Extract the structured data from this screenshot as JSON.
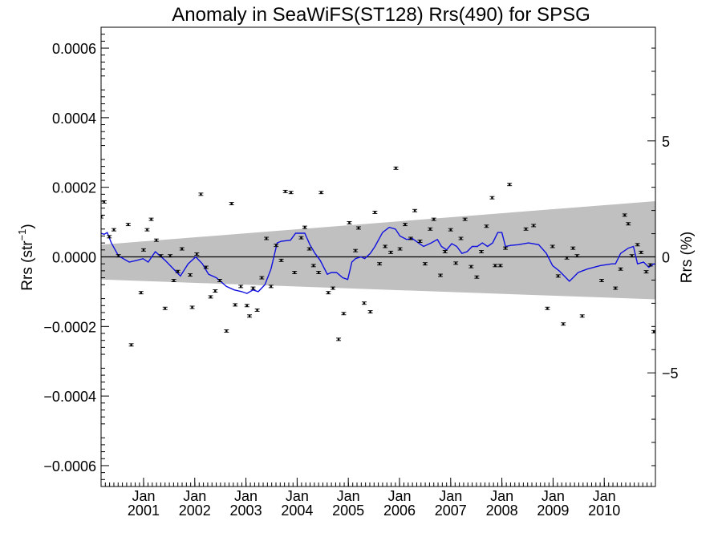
{
  "chart_data": {
    "type": "scatter",
    "title": "Anomaly in SeaWiFS(ST128) Rrs(490) for SPSG",
    "ylabel_left": "Rrs (str",
    "ylabel_left_sup": "−1",
    "ylabel_left_close": ")",
    "ylabel_right": "Rrs (%)",
    "xlim": [
      2000.0,
      2010.83
    ],
    "ylim_left": [
      -0.00066,
      0.00066
    ],
    "ylim_right": [
      -9.9,
      9.9
    ],
    "yticks_left": [
      {
        "v": 0.0006,
        "label": "0.0006"
      },
      {
        "v": 0.0004,
        "label": "0.0004"
      },
      {
        "v": 0.0002,
        "label": "0.0002"
      },
      {
        "v": 0.0,
        "label": "0.0000"
      },
      {
        "v": -0.0002,
        "label": "−0.0002"
      },
      {
        "v": -0.0004,
        "label": "−0.0004"
      },
      {
        "v": -0.0006,
        "label": "−0.0006"
      }
    ],
    "yticks_right": [
      {
        "v": 5,
        "label": "5"
      },
      {
        "v": 0,
        "label": "0"
      },
      {
        "v": -5,
        "label": "−5"
      }
    ],
    "xticks": [
      {
        "x": 2000.83,
        "month": "Jan",
        "year": "2001"
      },
      {
        "x": 2001.83,
        "month": "Jan",
        "year": "2002"
      },
      {
        "x": 2002.83,
        "month": "Jan",
        "year": "2003"
      },
      {
        "x": 2003.83,
        "month": "Jan",
        "year": "2004"
      },
      {
        "x": 2004.83,
        "month": "Jan",
        "year": "2005"
      },
      {
        "x": 2005.83,
        "month": "Jan",
        "year": "2006"
      },
      {
        "x": 2006.83,
        "month": "Jan",
        "year": "2007"
      },
      {
        "x": 2007.83,
        "month": "Jan",
        "year": "2008"
      },
      {
        "x": 2008.83,
        "month": "Jan",
        "year": "2009"
      },
      {
        "x": 2009.83,
        "month": "Jan",
        "year": "2010"
      }
    ],
    "grey_band": {
      "start": [
        2000.0,
        3.5e-05,
        -6.5e-05
      ],
      "end": [
        2010.83,
        0.00016,
        -0.000122
      ],
      "color": "#c0c0c0"
    },
    "zero_line": 0.0,
    "points": [
      [
        2000.0,
        0.000115
      ],
      [
        2000.06,
        0.000158
      ],
      [
        2000.16,
        5.8e-05
      ],
      [
        2000.25,
        7.8e-05
      ],
      [
        2000.34,
        3e-06
      ],
      [
        2000.53,
        9.3e-05
      ],
      [
        2000.59,
        -0.000253
      ],
      [
        2000.78,
        -0.000103
      ],
      [
        2000.83,
        2e-05
      ],
      [
        2000.9,
        7.8e-05
      ],
      [
        2000.98,
        0.000108
      ],
      [
        2001.08,
        4.8e-05
      ],
      [
        2001.17,
        3e-06
      ],
      [
        2001.25,
        -0.000148
      ],
      [
        2001.35,
        3e-06
      ],
      [
        2001.42,
        -6.8e-05
      ],
      [
        2001.5,
        -4.2e-05
      ],
      [
        2001.58,
        2.3e-05
      ],
      [
        2001.74,
        -5.2e-05
      ],
      [
        2001.78,
        -0.000145
      ],
      [
        2001.87,
        8e-06
      ],
      [
        2001.95,
        0.00018
      ],
      [
        2002.05,
        -3e-05
      ],
      [
        2002.14,
        -0.000115
      ],
      [
        2002.23,
        -9.8e-05
      ],
      [
        2002.32,
        -6.8e-05
      ],
      [
        2002.45,
        -0.000213
      ],
      [
        2002.55,
        0.000153
      ],
      [
        2002.62,
        -0.000138
      ],
      [
        2002.73,
        -8.5e-05
      ],
      [
        2002.85,
        -0.00014
      ],
      [
        2002.9,
        -0.00017
      ],
      [
        2002.97,
        -9e-05
      ],
      [
        2003.05,
        -0.000153
      ],
      [
        2003.14,
        -6e-05
      ],
      [
        2003.23,
        5.3e-05
      ],
      [
        2003.32,
        -8.5e-05
      ],
      [
        2003.42,
        3.3e-05
      ],
      [
        2003.52,
        -1e-05
      ],
      [
        2003.6,
        0.000188
      ],
      [
        2003.71,
        0.000185
      ],
      [
        2003.78,
        -4.5e-05
      ],
      [
        2003.91,
        5.5e-05
      ],
      [
        2003.98,
        8.5e-05
      ],
      [
        2004.07,
        2.3e-05
      ],
      [
        2004.15,
        -2.5e-05
      ],
      [
        2004.25,
        -4.5e-05
      ],
      [
        2004.3,
        0.000185
      ],
      [
        2004.44,
        -0.000103
      ],
      [
        2004.53,
        -9e-05
      ],
      [
        2004.64,
        -0.000237
      ],
      [
        2004.74,
        -0.000163
      ],
      [
        2004.85,
        9.8e-05
      ],
      [
        2004.97,
        1.8e-05
      ],
      [
        2005.03,
        8.3e-05
      ],
      [
        2005.14,
        -0.000133
      ],
      [
        2005.26,
        -0.000158
      ],
      [
        2005.35,
        0.000128
      ],
      [
        2005.44,
        -2e-05
      ],
      [
        2005.55,
        3e-05
      ],
      [
        2005.66,
        1.3e-05
      ],
      [
        2005.76,
        0.000255
      ],
      [
        2005.84,
        2.3e-05
      ],
      [
        2005.94,
        9.3e-05
      ],
      [
        2006.05,
        5.3e-05
      ],
      [
        2006.13,
        0.000133
      ],
      [
        2006.23,
        4.5e-05
      ],
      [
        2006.33,
        -2e-05
      ],
      [
        2006.43,
        8e-05
      ],
      [
        2006.5,
        0.000108
      ],
      [
        2006.63,
        -5.3e-05
      ],
      [
        2006.72,
        1.5e-05
      ],
      [
        2006.83,
        7.8e-05
      ],
      [
        2006.93,
        -1.8e-05
      ],
      [
        2007.03,
        5.3e-05
      ],
      [
        2007.11,
        0.000108
      ],
      [
        2007.23,
        -2.8e-05
      ],
      [
        2007.34,
        -5.8e-05
      ],
      [
        2007.43,
        1.5e-05
      ],
      [
        2007.53,
        8.8e-05
      ],
      [
        2007.64,
        0.00017
      ],
      [
        2007.7,
        -2.5e-05
      ],
      [
        2007.8,
        -2.5e-05
      ],
      [
        2007.9,
        2.5e-05
      ],
      [
        2007.98,
        0.000208
      ],
      [
        2008.3,
        8e-05
      ],
      [
        2008.45,
        9e-05
      ],
      [
        2008.72,
        -0.000148
      ],
      [
        2008.82,
        3e-05
      ],
      [
        2008.93,
        -5.5e-05
      ],
      [
        2009.03,
        -0.000193
      ],
      [
        2009.1,
        -3e-06
      ],
      [
        2009.22,
        2.5e-05
      ],
      [
        2009.3,
        3e-06
      ],
      [
        2009.4,
        -0.00017
      ],
      [
        2009.78,
        -6.8e-05
      ],
      [
        2010.05,
        -9e-05
      ],
      [
        2010.15,
        -3.5e-05
      ],
      [
        2010.23,
        0.00012
      ],
      [
        2010.3,
        9.5e-05
      ],
      [
        2010.37,
        3e-06
      ],
      [
        2010.48,
        3.5e-05
      ],
      [
        2010.55,
        1.3e-05
      ],
      [
        2010.65,
        -4.3e-05
      ],
      [
        2010.73,
        -2.3e-05
      ],
      [
        2010.8,
        -0.000215
      ],
      [
        2010.88,
        9.5e-05
      ],
      [
        2010.96,
        -0.000108
      ],
      [
        2011.02,
        0.0001
      ]
    ],
    "smooth_line": [
      [
        2000.0,
        6.8e-05
      ],
      [
        2000.06,
        6.5e-05
      ],
      [
        2000.12,
        7e-05
      ],
      [
        2000.2,
        4e-05
      ],
      [
        2000.34,
        3e-06
      ],
      [
        2000.55,
        -1.5e-05
      ],
      [
        2000.7,
        -1e-05
      ],
      [
        2000.82,
        -5e-06
      ],
      [
        2000.92,
        -1.5e-05
      ],
      [
        2001.06,
        1.5e-05
      ],
      [
        2001.25,
        -1e-05
      ],
      [
        2001.45,
        -4e-05
      ],
      [
        2001.55,
        -5.5e-05
      ],
      [
        2001.7,
        -2e-05
      ],
      [
        2001.85,
        0.0
      ],
      [
        2001.98,
        -2e-05
      ],
      [
        2002.1,
        -5e-05
      ],
      [
        2002.25,
        -6e-05
      ],
      [
        2002.45,
        -8.5e-05
      ],
      [
        2002.6,
        -9.5e-05
      ],
      [
        2002.75,
        -0.0001
      ],
      [
        2002.85,
        -0.000105
      ],
      [
        2002.97,
        -9.5e-05
      ],
      [
        2003.07,
        -0.0001
      ],
      [
        2003.2,
        -8e-05
      ],
      [
        2003.32,
        -3.5e-05
      ],
      [
        2003.44,
        4e-05
      ],
      [
        2003.52,
        4.5e-05
      ],
      [
        2003.7,
        4.8e-05
      ],
      [
        2003.8,
        6.8e-05
      ],
      [
        2003.98,
        6.8e-05
      ],
      [
        2004.08,
        3.5e-05
      ],
      [
        2004.18,
        1e-05
      ],
      [
        2004.28,
        -1e-05
      ],
      [
        2004.42,
        -5e-05
      ],
      [
        2004.5,
        -4.5e-05
      ],
      [
        2004.6,
        -4.5e-05
      ],
      [
        2004.72,
        -6e-05
      ],
      [
        2004.82,
        -6.5e-05
      ],
      [
        2004.9,
        -1.5e-05
      ],
      [
        2004.97,
        -5e-06
      ],
      [
        2005.08,
        0.0
      ],
      [
        2005.15,
        -5e-06
      ],
      [
        2005.26,
        1e-05
      ],
      [
        2005.35,
        3e-05
      ],
      [
        2005.5,
        7e-05
      ],
      [
        2005.63,
        8.5e-05
      ],
      [
        2005.75,
        8e-05
      ],
      [
        2005.84,
        6e-05
      ],
      [
        2005.97,
        5e-05
      ],
      [
        2006.08,
        5.3e-05
      ],
      [
        2006.2,
        4e-05
      ],
      [
        2006.3,
        3e-05
      ],
      [
        2006.45,
        4e-05
      ],
      [
        2006.57,
        5e-05
      ],
      [
        2006.65,
        3e-05
      ],
      [
        2006.75,
        2e-05
      ],
      [
        2006.85,
        3.8e-05
      ],
      [
        2006.95,
        3e-05
      ],
      [
        2007.05,
        1e-05
      ],
      [
        2007.15,
        1.5e-05
      ],
      [
        2007.25,
        3e-05
      ],
      [
        2007.35,
        3e-05
      ],
      [
        2007.45,
        4e-05
      ],
      [
        2007.55,
        3e-05
      ],
      [
        2007.65,
        4e-05
      ],
      [
        2007.75,
        7e-05
      ],
      [
        2007.83,
        7e-05
      ],
      [
        2007.9,
        3e-05
      ],
      [
        2008.0,
        3.3e-05
      ],
      [
        2008.15,
        3.5e-05
      ],
      [
        2008.35,
        4e-05
      ],
      [
        2008.55,
        3.5e-05
      ],
      [
        2008.7,
        1e-05
      ],
      [
        2008.82,
        -2.5e-05
      ],
      [
        2008.95,
        -4e-05
      ],
      [
        2009.05,
        -5.5e-05
      ],
      [
        2009.15,
        -7e-05
      ],
      [
        2009.22,
        -6e-05
      ],
      [
        2009.32,
        -4.5e-05
      ],
      [
        2009.5,
        -3.5e-05
      ],
      [
        2009.75,
        -2.5e-05
      ],
      [
        2009.98,
        -2e-05
      ],
      [
        2010.05,
        -2e-05
      ],
      [
        2010.15,
        1e-05
      ],
      [
        2010.3,
        2.5e-05
      ],
      [
        2010.4,
        3e-05
      ],
      [
        2010.48,
        -2e-05
      ],
      [
        2010.6,
        -1.5e-05
      ],
      [
        2010.7,
        -3e-05
      ],
      [
        2010.8,
        -2e-05
      ],
      [
        2010.9,
        -2.5e-05
      ]
    ],
    "colors": {
      "points": "#000000",
      "smooth_line": "#1010e0",
      "axes": "#000000"
    },
    "grid": false,
    "legend": "none"
  }
}
